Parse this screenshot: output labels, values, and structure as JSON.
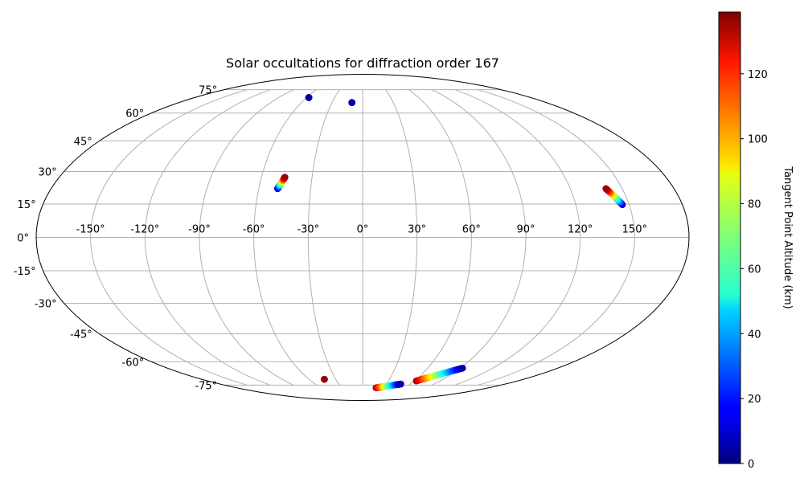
{
  "chart_data": {
    "type": "scatter",
    "projection": "mollweide",
    "title": "Solar occultations for diffraction order 167",
    "lon_ticks": [
      -150,
      -120,
      -90,
      -60,
      -30,
      0,
      30,
      60,
      90,
      120,
      150
    ],
    "lat_ticks": [
      -75,
      -60,
      -45,
      -30,
      -15,
      0,
      15,
      30,
      45,
      60,
      75
    ],
    "lon_tick_labels": [
      "-150°",
      "-120°",
      "-90°",
      "-60°",
      "-30°",
      "0°",
      "30°",
      "60°",
      "90°",
      "120°",
      "150°"
    ],
    "lat_tick_labels": [
      "-75°",
      "-60°",
      "-45°",
      "-30°",
      "-15°",
      "0°",
      "15°",
      "30°",
      "45°",
      "60°",
      "75°"
    ],
    "grid": true,
    "colorbar": {
      "label": "Tangent Point Altitude (km)",
      "range": [
        0,
        139
      ],
      "ticks": [
        0,
        20,
        40,
        60,
        80,
        100,
        120
      ],
      "tick_labels": [
        "0",
        "20",
        "40",
        "60",
        "80",
        "100",
        "120"
      ],
      "colormap": "jet"
    },
    "tracks": [
      {
        "lon_start": -57.6,
        "lat_start": 69.5,
        "lon_end": -57.6,
        "lat_end": 69.5,
        "alt_start": 5,
        "alt_end": 5
      },
      {
        "lon_start": -10.5,
        "lat_start": 66.3,
        "lon_end": -10.5,
        "lat_end": 66.3,
        "alt_start": 5,
        "alt_end": 5
      },
      {
        "lon_start": -49.1,
        "lat_start": 22.0,
        "lon_end": -46.1,
        "lat_end": 27.3,
        "alt_start": 2,
        "alt_end": 135
      },
      {
        "lon_start": 146.2,
        "lat_start": 14.7,
        "lon_end": 140.6,
        "lat_end": 22.0,
        "alt_start": 5,
        "alt_end": 135
      },
      {
        "lon_start": -42.8,
        "lat_start": -70.9,
        "lon_end": -42.8,
        "lat_end": -70.9,
        "alt_start": 135,
        "alt_end": 135
      },
      {
        "lon_start": 19.2,
        "lat_start": -77.0,
        "lon_end": 48.1,
        "lat_end": -74.2,
        "alt_start": 135,
        "alt_end": 5
      },
      {
        "lon_start": 62.4,
        "lat_start": -72.0,
        "lon_end": 92.2,
        "lat_end": -63.8,
        "alt_start": 135,
        "alt_end": 5
      }
    ]
  }
}
